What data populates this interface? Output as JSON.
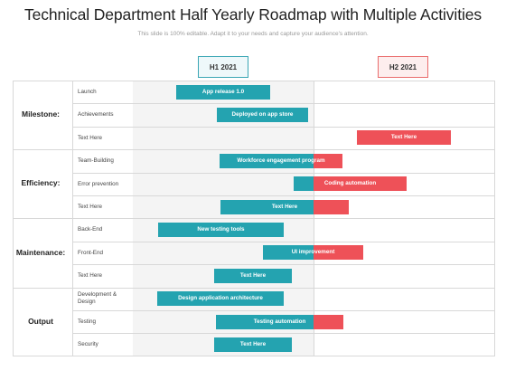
{
  "title": "Technical Department Half Yearly Roadmap with Multiple Activities",
  "subtitle": "This slide is 100% editable. Adapt it to your needs and capture your audience's attention.",
  "halves": {
    "h1": "H1 2021",
    "h2": "H2 2021"
  },
  "colors": {
    "teal": "#24a3b0",
    "red": "#ee5158",
    "grid": "#d8d8d8",
    "shade": "#f4f4f4"
  },
  "groups": [
    {
      "label": "Milestone:",
      "rows": [
        {
          "activity": "Launch",
          "bar": "App release 1.0"
        },
        {
          "activity": "Achievements",
          "bar": "Deployed on app store"
        },
        {
          "activity": "Text Here",
          "bar": "Text Here"
        }
      ]
    },
    {
      "label": "Efficiency:",
      "rows": [
        {
          "activity": "Team-Building",
          "bar": "Workforce engagement program"
        },
        {
          "activity": "Error prevention",
          "bar": "Coding automation"
        },
        {
          "activity": "Text Here",
          "bar": "Text Here"
        }
      ]
    },
    {
      "label": "Maintenance:",
      "rows": [
        {
          "activity": "Back-End",
          "bar": "New testing tools"
        },
        {
          "activity": "Front-End",
          "bar": "UI improvement"
        },
        {
          "activity": "Text Here",
          "bar": "Text Here"
        }
      ]
    },
    {
      "label": "Output",
      "rows": [
        {
          "activity": "Development & Design",
          "bar": "Design application architecture"
        },
        {
          "activity": "Testing",
          "bar": "Testing automation"
        },
        {
          "activity": "Security",
          "bar": "Text Here"
        }
      ]
    }
  ]
}
